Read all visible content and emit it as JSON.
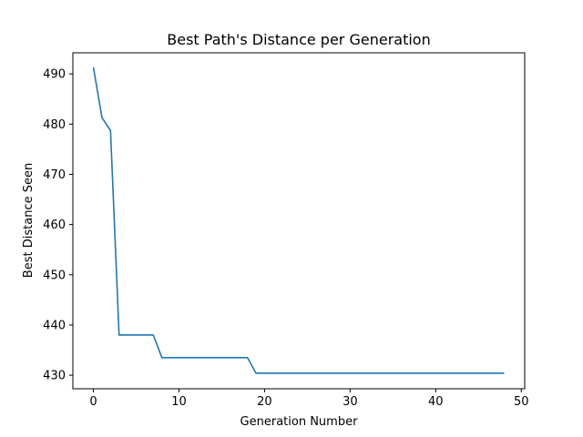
{
  "chart_data": {
    "type": "line",
    "title": "Best Path's Distance per Generation",
    "xlabel": "Generation Number",
    "ylabel": "Best Distance Seen",
    "xlim": [
      -2.4,
      50.4
    ],
    "ylim": [
      427.3,
      494.2
    ],
    "xticks": [
      0,
      10,
      20,
      30,
      40,
      50
    ],
    "yticks": [
      430,
      440,
      450,
      460,
      470,
      480,
      490
    ],
    "grid": false,
    "series": [
      {
        "color": "#1f77b4",
        "x": [
          0,
          1,
          2,
          3,
          4,
          5,
          6,
          7,
          8,
          9,
          10,
          11,
          12,
          13,
          14,
          15,
          16,
          17,
          18,
          19,
          20,
          21,
          22,
          23,
          24,
          25,
          26,
          27,
          28,
          29,
          30,
          31,
          32,
          33,
          34,
          35,
          36,
          37,
          38,
          39,
          40,
          41,
          42,
          43,
          44,
          45,
          46,
          47,
          48
        ],
        "y": [
          491.3,
          481.3,
          478.7,
          438.0,
          438.0,
          438.0,
          438.0,
          438.0,
          433.5,
          433.5,
          433.5,
          433.5,
          433.5,
          433.5,
          433.5,
          433.5,
          433.5,
          433.5,
          433.5,
          430.4,
          430.4,
          430.4,
          430.4,
          430.4,
          430.4,
          430.4,
          430.4,
          430.4,
          430.4,
          430.4,
          430.4,
          430.4,
          430.4,
          430.4,
          430.4,
          430.4,
          430.4,
          430.4,
          430.4,
          430.4,
          430.4,
          430.4,
          430.4,
          430.4,
          430.4,
          430.4,
          430.4,
          430.4,
          430.4
        ]
      }
    ]
  }
}
